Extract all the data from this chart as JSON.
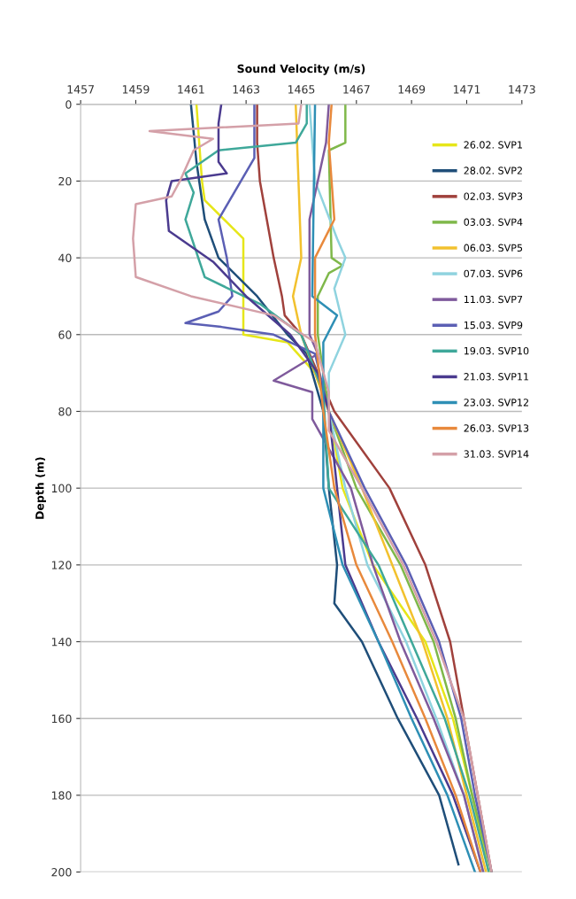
{
  "chart_data": {
    "type": "line",
    "xlabel": "Sound Velocity (m/s)",
    "ylabel": "Depth (m)",
    "xlim": [
      1457,
      1473
    ],
    "xticks": [
      1457,
      1459,
      1461,
      1463,
      1465,
      1467,
      1469,
      1471,
      1473
    ],
    "ylim": [
      200,
      0
    ],
    "yticks": [
      0,
      20,
      40,
      60,
      80,
      100,
      120,
      140,
      160,
      180,
      200
    ],
    "grid": "y",
    "legend": "right",
    "line_style": "solid",
    "marker": "none",
    "series": [
      {
        "name": "26.02. SVP1",
        "color": "#e6e619",
        "x": [
          1461.2,
          1461.3,
          1461.4,
          1461.5,
          1462.2,
          1462.9,
          1462.9,
          1462.9,
          1464.5,
          1465.5,
          1466.0,
          1466.5,
          1467.6,
          1469.5,
          1470.5,
          1471.2,
          1471.8
        ],
        "values": [
          0,
          10,
          20,
          25,
          30,
          35,
          45,
          60,
          62,
          70,
          80,
          100,
          120,
          140,
          160,
          180,
          200
        ]
      },
      {
        "name": "28.02. SVP2",
        "color": "#1f4e79",
        "x": [
          1461.0,
          1461.2,
          1461.5,
          1462.0,
          1463.4,
          1464.5,
          1465.2,
          1465.8,
          1466.0,
          1466.3,
          1466.2,
          1467.2,
          1468.5,
          1470.0,
          1470.7
        ],
        "values": [
          0,
          15,
          30,
          40,
          50,
          60,
          65,
          80,
          100,
          120,
          130,
          140,
          160,
          180,
          198
        ]
      },
      {
        "name": "02.03. SVP3",
        "color": "#a0413c",
        "x": [
          1463.4,
          1463.4,
          1463.5,
          1464.0,
          1464.3,
          1464.4,
          1465.0,
          1466.2,
          1468.2,
          1469.5,
          1470.4,
          1470.9,
          1471.4,
          1471.9
        ],
        "values": [
          0,
          10,
          20,
          40,
          50,
          55,
          60,
          80,
          100,
          120,
          140,
          160,
          180,
          200
        ]
      },
      {
        "name": "03.03. SVP4",
        "color": "#7fb84a",
        "x": [
          1466.6,
          1466.6,
          1466.0,
          1466.1,
          1466.5,
          1466.0,
          1465.6,
          1465.6,
          1466.0,
          1467.0,
          1468.6,
          1469.8,
          1470.6,
          1471.2,
          1471.9
        ],
        "values": [
          0,
          10,
          12,
          40,
          42,
          44,
          50,
          60,
          80,
          100,
          120,
          140,
          160,
          180,
          200
        ]
      },
      {
        "name": "06.03. SVP5",
        "color": "#f2c12e",
        "x": [
          1464.8,
          1464.9,
          1465.0,
          1464.7,
          1465.0,
          1466.0,
          1467.2,
          1468.3,
          1469.4,
          1470.3,
          1471.0,
          1471.7
        ],
        "values": [
          0,
          20,
          40,
          50,
          60,
          80,
          100,
          120,
          140,
          160,
          180,
          200
        ]
      },
      {
        "name": "07.03. SVP6",
        "color": "#8fd3df",
        "x": [
          1465.3,
          1465.5,
          1466.3,
          1466.6,
          1466.2,
          1466.6,
          1466.0,
          1466.0,
          1466.6,
          1467.4,
          1468.8,
          1469.9,
          1470.9,
          1471.6
        ],
        "values": [
          0,
          20,
          35,
          40,
          48,
          60,
          70,
          80,
          100,
          120,
          140,
          160,
          180,
          200
        ]
      },
      {
        "name": "11.03. SVP7",
        "color": "#7f5a9c",
        "x": [
          1466.0,
          1465.9,
          1465.6,
          1465.3,
          1465.3,
          1465.6,
          1464.0,
          1465.4,
          1465.4,
          1466.8,
          1467.6,
          1468.6,
          1469.8,
          1470.9,
          1471.6
        ],
        "values": [
          0,
          10,
          20,
          30,
          60,
          65,
          72,
          75,
          82,
          100,
          120,
          140,
          160,
          180,
          200
        ]
      },
      {
        "name": "15.03. SVP9",
        "color": "#5b5fb4",
        "x": [
          1463.3,
          1463.3,
          1462.0,
          1462.3,
          1462.5,
          1462.0,
          1460.8,
          1462.1,
          1464.0,
          1465.5,
          1466.0,
          1467.3,
          1468.8,
          1470.0,
          1470.8,
          1471.3,
          1471.9
        ],
        "values": [
          0,
          14,
          30,
          40,
          50,
          54,
          57,
          58,
          60,
          65,
          80,
          100,
          120,
          140,
          160,
          180,
          200
        ]
      },
      {
        "name": "19.03. SVP10",
        "color": "#3fa89a",
        "x": [
          1465.2,
          1465.2,
          1464.8,
          1462.0,
          1460.8,
          1461.1,
          1460.8,
          1461.5,
          1463.5,
          1465.0,
          1465.8,
          1466.0,
          1467.8,
          1469.0,
          1470.2,
          1471.1,
          1471.8
        ],
        "values": [
          0,
          5,
          10,
          12,
          18,
          23,
          30,
          45,
          52,
          60,
          75,
          100,
          120,
          140,
          160,
          180,
          200
        ]
      },
      {
        "name": "21.03. SVP11",
        "color": "#4b3b8f",
        "x": [
          1462.1,
          1462.0,
          1462.0,
          1462.3,
          1460.3,
          1460.1,
          1460.2,
          1461.8,
          1463.0,
          1464.6,
          1465.6,
          1466.0,
          1466.3,
          1466.6,
          1467.8,
          1469.2,
          1470.5,
          1471.5
        ],
        "values": [
          0,
          5,
          15,
          18,
          20,
          25,
          33,
          41,
          50,
          60,
          70,
          80,
          100,
          120,
          140,
          160,
          180,
          200
        ]
      },
      {
        "name": "23.03. SVP12",
        "color": "#2e8fb5",
        "x": [
          1465.5,
          1465.4,
          1466.3,
          1465.8,
          1465.8,
          1465.8,
          1466.5,
          1467.8,
          1469.0,
          1470.3,
          1471.3
        ],
        "values": [
          0,
          50,
          55,
          62,
          80,
          100,
          120,
          140,
          160,
          180,
          200
        ]
      },
      {
        "name": "26.03. SVP13",
        "color": "#e8893c",
        "x": [
          1466.1,
          1466.0,
          1466.1,
          1466.2,
          1465.5,
          1465.5,
          1465.8,
          1466.2,
          1467.0,
          1468.3,
          1469.5,
          1470.6,
          1471.5
        ],
        "values": [
          0,
          10,
          20,
          30,
          40,
          60,
          80,
          100,
          120,
          140,
          160,
          180,
          200
        ]
      },
      {
        "name": "31.03. SVP14",
        "color": "#d4a0a8",
        "x": [
          1465.0,
          1464.9,
          1459.5,
          1461.8,
          1461.1,
          1460.6,
          1460.3,
          1459.0,
          1458.9,
          1459.0,
          1461.0,
          1464.0,
          1465.5,
          1466.0,
          1466.0,
          1467.2,
          1468.7,
          1469.9,
          1470.9,
          1471.4,
          1471.9
        ],
        "values": [
          0,
          5,
          7,
          9,
          12,
          20,
          24,
          26,
          35,
          45,
          50,
          55,
          62,
          75,
          85,
          100,
          120,
          140,
          160,
          180,
          200
        ]
      }
    ]
  }
}
